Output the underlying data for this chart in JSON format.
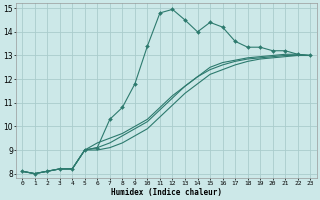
{
  "xlabel": "Humidex (Indice chaleur)",
  "bg_color": "#cce8e8",
  "grid_color": "#aacccc",
  "line_color": "#2d7a6e",
  "xlim": [
    -0.5,
    23.5
  ],
  "ylim": [
    7.8,
    15.2
  ],
  "xticks": [
    0,
    1,
    2,
    3,
    4,
    5,
    6,
    7,
    8,
    9,
    10,
    11,
    12,
    13,
    14,
    15,
    16,
    17,
    18,
    19,
    20,
    21,
    22,
    23
  ],
  "yticks": [
    8,
    9,
    10,
    11,
    12,
    13,
    14,
    15
  ],
  "line1_x": [
    0,
    1,
    2,
    3,
    4,
    5,
    6,
    7,
    8,
    9,
    10,
    11,
    12,
    13,
    14,
    15,
    16,
    17,
    18,
    19,
    20,
    21,
    22,
    23
  ],
  "line1_y": [
    8.1,
    8.0,
    8.1,
    8.2,
    8.2,
    9.0,
    9.1,
    10.3,
    10.8,
    11.8,
    13.4,
    14.8,
    14.95,
    14.5,
    14.0,
    14.4,
    14.2,
    13.6,
    13.35,
    13.35,
    13.2,
    13.2,
    13.05,
    13.0
  ],
  "line2_x": [
    0,
    1,
    2,
    3,
    4,
    5,
    6,
    7,
    8,
    9,
    10,
    11,
    12,
    13,
    14,
    15,
    16,
    17,
    18,
    19,
    20,
    21,
    22,
    23
  ],
  "line2_y": [
    8.1,
    8.0,
    8.1,
    8.2,
    8.2,
    9.0,
    9.3,
    9.5,
    9.7,
    10.0,
    10.3,
    10.8,
    11.3,
    11.7,
    12.1,
    12.5,
    12.7,
    12.8,
    12.9,
    12.95,
    13.0,
    13.05,
    13.05,
    13.0
  ],
  "line3_x": [
    0,
    1,
    2,
    3,
    4,
    5,
    6,
    7,
    8,
    9,
    10,
    11,
    12,
    13,
    14,
    15,
    16,
    17,
    18,
    19,
    20,
    21,
    22,
    23
  ],
  "line3_y": [
    8.1,
    8.0,
    8.1,
    8.2,
    8.2,
    9.0,
    9.1,
    9.3,
    9.6,
    9.9,
    10.2,
    10.7,
    11.2,
    11.7,
    12.1,
    12.4,
    12.6,
    12.75,
    12.85,
    12.9,
    12.95,
    13.0,
    13.0,
    13.0
  ],
  "line4_x": [
    0,
    1,
    2,
    3,
    4,
    5,
    6,
    7,
    8,
    9,
    10,
    11,
    12,
    13,
    14,
    15,
    16,
    17,
    18,
    19,
    20,
    21,
    22,
    23
  ],
  "line4_y": [
    8.1,
    8.0,
    8.1,
    8.2,
    8.2,
    9.0,
    9.0,
    9.1,
    9.3,
    9.6,
    9.9,
    10.4,
    10.9,
    11.4,
    11.8,
    12.2,
    12.4,
    12.6,
    12.75,
    12.85,
    12.9,
    12.95,
    13.0,
    13.0
  ]
}
